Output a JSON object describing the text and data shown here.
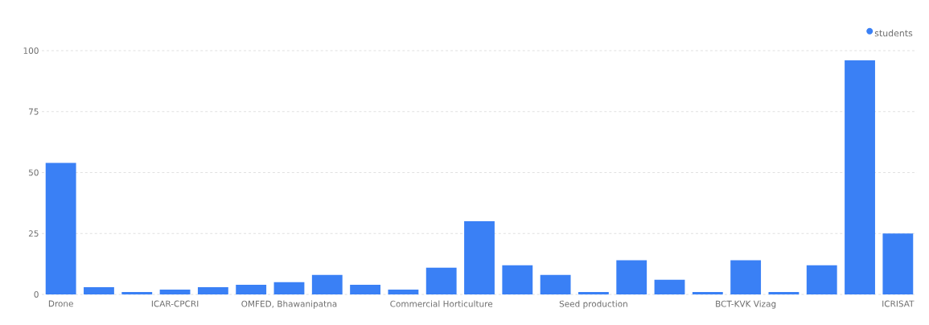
{
  "chart_data": {
    "type": "bar",
    "categories": [
      "Drone",
      null,
      null,
      "ICAR-CPCRI",
      null,
      null,
      "OMFED, Bhawanipatna",
      null,
      null,
      null,
      "Commercial Horticulture",
      null,
      null,
      null,
      "Seed production",
      null,
      null,
      null,
      "BCT-KVK Vizag",
      null,
      null,
      null,
      "ICRISAT"
    ],
    "series": [
      {
        "name": "students",
        "color": "#3a80f5",
        "values": [
          54,
          3,
          1,
          2,
          3,
          4,
          5,
          8,
          4,
          2,
          11,
          30,
          12,
          8,
          1,
          14,
          6,
          1,
          14,
          1,
          12,
          96,
          25
        ]
      }
    ],
    "ylim": [
      0,
      100
    ],
    "yticks": [
      0,
      25,
      50,
      75,
      100
    ],
    "grid": "y",
    "legend": "top right"
  }
}
